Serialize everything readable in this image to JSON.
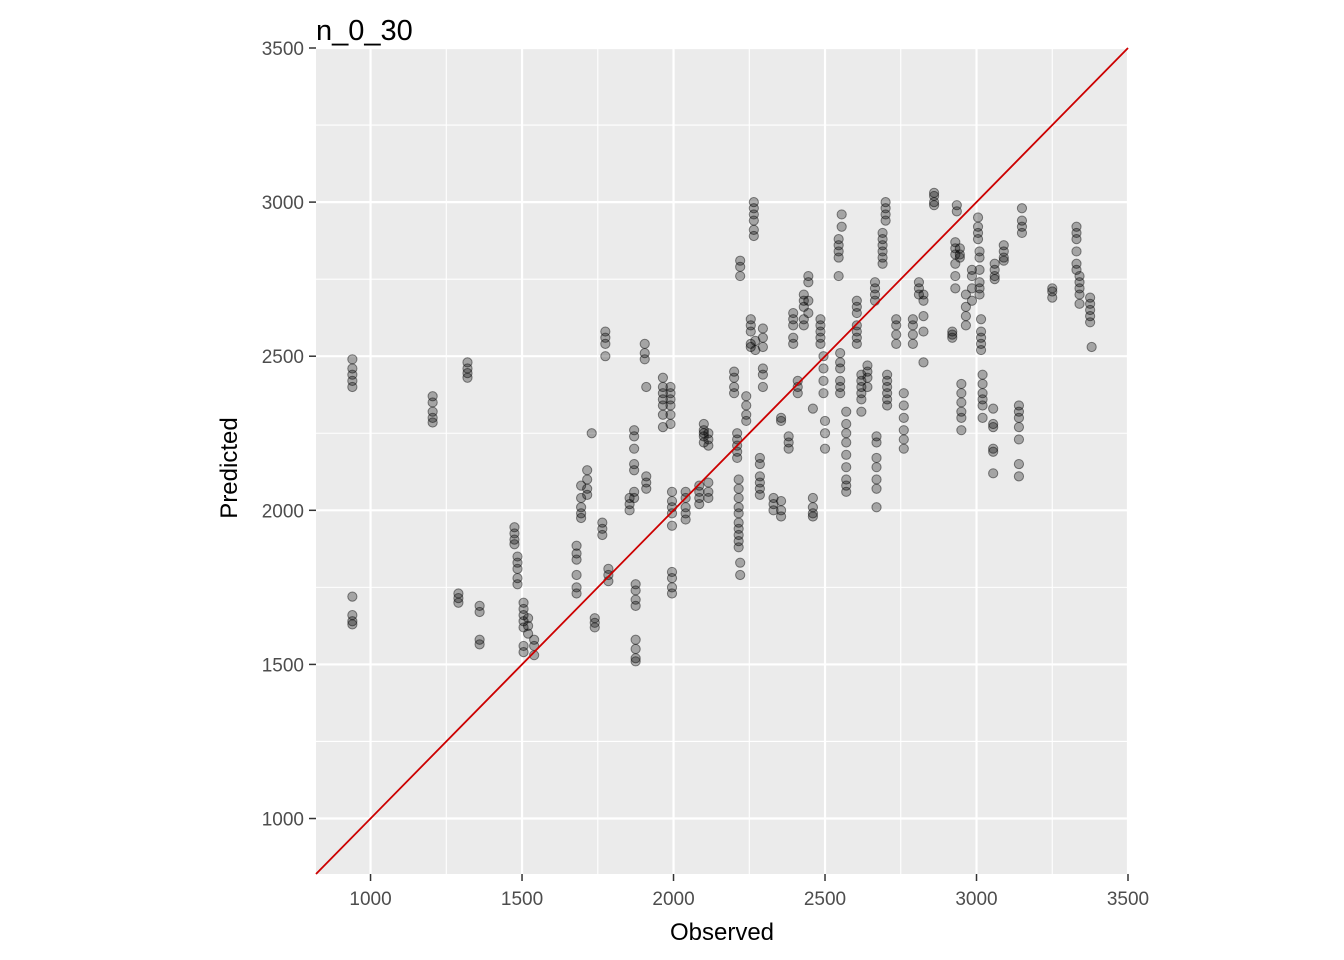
{
  "chart_data": {
    "type": "scatter",
    "title": "n_0_30",
    "xlabel": "Observed",
    "ylabel": "Predicted",
    "xlim": [
      820,
      3500
    ],
    "ylim": [
      820,
      3500
    ],
    "x_ticks": [
      1000,
      1500,
      2000,
      2500,
      3000,
      3500
    ],
    "y_ticks": [
      1000,
      1500,
      2000,
      2500,
      3000,
      3500
    ],
    "grid": true,
    "reference_line": {
      "type": "identity",
      "intercept": 0,
      "slope": 1,
      "color": "#cc0000"
    },
    "point_color": "#000000",
    "point_opacity": 0.3,
    "panel_background": "#ebebeb",
    "groups": [
      {
        "x": 940,
        "y": [
          2490,
          2460,
          2440,
          2420,
          2400,
          1720,
          1660,
          1640,
          1630
        ]
      },
      {
        "x": 1205,
        "y": [
          2370,
          2350,
          2320,
          2300,
          2285
        ]
      },
      {
        "x": 1290,
        "y": [
          1730,
          1715,
          1700
        ]
      },
      {
        "x": 1320,
        "y": [
          2480,
          2460,
          2445,
          2430
        ]
      },
      {
        "x": 1360,
        "y": [
          1690,
          1670,
          1580,
          1565
        ]
      },
      {
        "x": 1475,
        "y": [
          1945,
          1925,
          1905,
          1890
        ]
      },
      {
        "x": 1485,
        "y": [
          1850,
          1830,
          1810,
          1780,
          1760
        ]
      },
      {
        "x": 1505,
        "y": [
          1700,
          1680,
          1660,
          1640,
          1620,
          1560,
          1540
        ]
      },
      {
        "x": 1520,
        "y": [
          1650,
          1625,
          1600
        ]
      },
      {
        "x": 1540,
        "y": [
          1580,
          1560,
          1530
        ]
      },
      {
        "x": 1680,
        "y": [
          1885,
          1860,
          1840,
          1790,
          1750,
          1730
        ]
      },
      {
        "x": 1695,
        "y": [
          2080,
          2040,
          2010,
          1990,
          1975
        ]
      },
      {
        "x": 1715,
        "y": [
          2130,
          2100,
          2070,
          2050
        ]
      },
      {
        "x": 1730,
        "y": [
          2250
        ]
      },
      {
        "x": 1740,
        "y": [
          1650,
          1635,
          1620
        ]
      },
      {
        "x": 1765,
        "y": [
          1960,
          1940,
          1920
        ]
      },
      {
        "x": 1775,
        "y": [
          2580,
          2560,
          2540,
          2500
        ]
      },
      {
        "x": 1785,
        "y": [
          1810,
          1790,
          1770
        ]
      },
      {
        "x": 1855,
        "y": [
          2040,
          2020,
          2000
        ]
      },
      {
        "x": 1870,
        "y": [
          2260,
          2240,
          2200,
          2150,
          2130,
          2060,
          2040
        ]
      },
      {
        "x": 1875,
        "y": [
          1760,
          1740,
          1710,
          1690,
          1580,
          1550,
          1520,
          1510
        ]
      },
      {
        "x": 1905,
        "y": [
          2540,
          2510,
          2490
        ]
      },
      {
        "x": 1910,
        "y": [
          2110,
          2090,
          2070,
          2400
        ]
      },
      {
        "x": 1965,
        "y": [
          2430,
          2400,
          2380,
          2360,
          2340,
          2310,
          2270
        ]
      },
      {
        "x": 1990,
        "y": [
          2400,
          2380,
          2360,
          2340,
          2310,
          2280
        ]
      },
      {
        "x": 1995,
        "y": [
          2060,
          2030,
          2010,
          1990,
          1950
        ]
      },
      {
        "x": 1995,
        "y": [
          1800,
          1780,
          1750,
          1730
        ]
      },
      {
        "x": 2040,
        "y": [
          2060,
          2040,
          2010,
          1990,
          1970
        ]
      },
      {
        "x": 2085,
        "y": [
          2080,
          2060,
          2040,
          2020
        ]
      },
      {
        "x": 2100,
        "y": [
          2280,
          2260,
          2250,
          2240,
          2220
        ]
      },
      {
        "x": 2115,
        "y": [
          2250,
          2230,
          2210,
          2090,
          2060,
          2040
        ]
      },
      {
        "x": 2200,
        "y": [
          2450,
          2430,
          2400,
          2380
        ]
      },
      {
        "x": 2210,
        "y": [
          2250,
          2230,
          2210,
          2190,
          2170
        ]
      },
      {
        "x": 2215,
        "y": [
          2100,
          2070,
          2040,
          2010,
          1990,
          1960,
          1940,
          1920,
          1900,
          1880
        ]
      },
      {
        "x": 2220,
        "y": [
          1830,
          1790
        ]
      },
      {
        "x": 2220,
        "y": [
          2810,
          2790,
          2760
        ]
      },
      {
        "x": 2240,
        "y": [
          2370,
          2340,
          2310,
          2290
        ]
      },
      {
        "x": 2255,
        "y": [
          2620,
          2600,
          2580,
          2540,
          2530
        ]
      },
      {
        "x": 2265,
        "y": [
          3000,
          2980,
          2960,
          2940,
          2910,
          2890
        ]
      },
      {
        "x": 2270,
        "y": [
          2550,
          2520
        ]
      },
      {
        "x": 2285,
        "y": [
          2170,
          2150,
          2110,
          2090,
          2070,
          2050
        ]
      },
      {
        "x": 2295,
        "y": [
          2590,
          2560,
          2530,
          2460,
          2440,
          2400
        ]
      },
      {
        "x": 2330,
        "y": [
          2040,
          2020,
          2000
        ]
      },
      {
        "x": 2355,
        "y": [
          2030,
          2000,
          1980,
          2300,
          2290
        ]
      },
      {
        "x": 2380,
        "y": [
          2240,
          2220,
          2200
        ]
      },
      {
        "x": 2395,
        "y": [
          2640,
          2620,
          2600,
          2560,
          2540
        ]
      },
      {
        "x": 2410,
        "y": [
          2420,
          2400,
          2380
        ]
      },
      {
        "x": 2430,
        "y": [
          2700,
          2680,
          2660,
          2620,
          2600
        ]
      },
      {
        "x": 2445,
        "y": [
          2760,
          2740,
          2680,
          2640
        ]
      },
      {
        "x": 2460,
        "y": [
          2040,
          2010,
          1990,
          1980,
          2330
        ]
      },
      {
        "x": 2485,
        "y": [
          2620,
          2600,
          2580,
          2560,
          2540
        ]
      },
      {
        "x": 2495,
        "y": [
          2500,
          2460,
          2420,
          2380
        ]
      },
      {
        "x": 2500,
        "y": [
          2290,
          2250,
          2200
        ]
      },
      {
        "x": 2545,
        "y": [
          2880,
          2860,
          2840,
          2820,
          2760
        ]
      },
      {
        "x": 2550,
        "y": [
          2510,
          2480,
          2460,
          2420,
          2400,
          2380
        ]
      },
      {
        "x": 2555,
        "y": [
          2960,
          2920
        ]
      },
      {
        "x": 2570,
        "y": [
          2320,
          2280,
          2250,
          2220,
          2180,
          2140,
          2100,
          2080,
          2060
        ]
      },
      {
        "x": 2605,
        "y": [
          2680,
          2660,
          2640,
          2600,
          2580,
          2560,
          2540
        ]
      },
      {
        "x": 2620,
        "y": [
          2440,
          2420,
          2400,
          2380,
          2360,
          2320
        ]
      },
      {
        "x": 2640,
        "y": [
          2470,
          2450,
          2430,
          2400
        ]
      },
      {
        "x": 2665,
        "y": [
          2740,
          2720,
          2700,
          2680
        ]
      },
      {
        "x": 2670,
        "y": [
          2240,
          2220,
          2170,
          2140,
          2100,
          2070,
          2010
        ]
      },
      {
        "x": 2690,
        "y": [
          2900,
          2880,
          2860,
          2840,
          2820,
          2800
        ]
      },
      {
        "x": 2700,
        "y": [
          3000,
          2980,
          2960,
          2940
        ]
      },
      {
        "x": 2705,
        "y": [
          2440,
          2420,
          2400,
          2380,
          2360,
          2340
        ]
      },
      {
        "x": 2735,
        "y": [
          2620,
          2600,
          2570,
          2540
        ]
      },
      {
        "x": 2760,
        "y": [
          2380,
          2340,
          2300,
          2260,
          2230,
          2200
        ]
      },
      {
        "x": 2790,
        "y": [
          2620,
          2600,
          2570,
          2540
        ]
      },
      {
        "x": 2810,
        "y": [
          2740,
          2720,
          2700
        ]
      },
      {
        "x": 2825,
        "y": [
          2700,
          2680,
          2630,
          2580,
          2480
        ]
      },
      {
        "x": 2860,
        "y": [
          3030,
          3020,
          3000,
          2990
        ]
      },
      {
        "x": 2920,
        "y": [
          2580,
          2570,
          2560
        ]
      },
      {
        "x": 2930,
        "y": [
          2870,
          2850,
          2830,
          2800,
          2760,
          2720
        ]
      },
      {
        "x": 2935,
        "y": [
          2990,
          2970
        ]
      },
      {
        "x": 2945,
        "y": [
          2850,
          2830,
          2820
        ]
      },
      {
        "x": 2950,
        "y": [
          2410,
          2380,
          2350,
          2320,
          2300,
          2260
        ]
      },
      {
        "x": 2965,
        "y": [
          2700,
          2660,
          2630,
          2600
        ]
      },
      {
        "x": 2985,
        "y": [
          2780,
          2760,
          2720,
          2680
        ]
      },
      {
        "x": 3005,
        "y": [
          2950,
          2920,
          2900,
          2880
        ]
      },
      {
        "x": 3010,
        "y": [
          2840,
          2820,
          2780,
          2740,
          2720,
          2700
        ]
      },
      {
        "x": 3015,
        "y": [
          2620,
          2580,
          2560,
          2540,
          2520
        ]
      },
      {
        "x": 3020,
        "y": [
          2440,
          2410,
          2380,
          2360,
          2340,
          2300
        ]
      },
      {
        "x": 3055,
        "y": [
          2330,
          2280,
          2270,
          2200,
          2190,
          2120
        ]
      },
      {
        "x": 3060,
        "y": [
          2800,
          2780,
          2760,
          2750
        ]
      },
      {
        "x": 3090,
        "y": [
          2860,
          2840,
          2820,
          2810
        ]
      },
      {
        "x": 3140,
        "y": [
          2340,
          2320,
          2300,
          2270,
          2230,
          2150,
          2110
        ]
      },
      {
        "x": 3150,
        "y": [
          2980,
          2940,
          2920,
          2900
        ]
      },
      {
        "x": 3250,
        "y": [
          2720,
          2710,
          2690
        ]
      },
      {
        "x": 3330,
        "y": [
          2920,
          2900,
          2880,
          2840,
          2800,
          2780
        ]
      },
      {
        "x": 3340,
        "y": [
          2760,
          2740,
          2720,
          2700,
          2670
        ]
      },
      {
        "x": 3375,
        "y": [
          2690,
          2670,
          2650,
          2630,
          2610
        ]
      },
      {
        "x": 3380,
        "y": [
          2530
        ]
      }
    ]
  }
}
